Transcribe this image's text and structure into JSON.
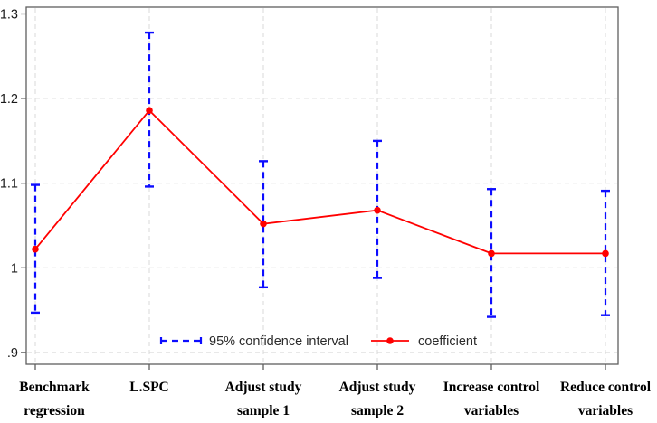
{
  "chart_data": {
    "type": "line",
    "title": "",
    "xlabel": "",
    "ylabel": "",
    "categories": [
      {
        "label": "Benchmark regression",
        "lines": [
          "Benchmark",
          "regression"
        ]
      },
      {
        "label": "L.SPC",
        "lines": [
          "L.SPC"
        ]
      },
      {
        "label": "Adjust study sample 1",
        "lines": [
          "Adjust study",
          "sample 1"
        ]
      },
      {
        "label": "Adjust study sample 2",
        "lines": [
          "Adjust study",
          "sample 2"
        ]
      },
      {
        "label": "Increase control variables",
        "lines": [
          "Increase control",
          "variables"
        ]
      },
      {
        "label": "Reduce control variables",
        "lines": [
          "Reduce control",
          "variables"
        ]
      }
    ],
    "series": [
      {
        "name": "coefficient",
        "type": "line-with-markers",
        "color": "#ff0000",
        "values": [
          1.022,
          1.186,
          1.052,
          1.068,
          1.017,
          1.017
        ]
      },
      {
        "name": "95% confidence interval",
        "type": "errorbar",
        "color": "#0d0dff",
        "low": [
          0.947,
          1.096,
          0.977,
          0.988,
          0.942,
          0.944
        ],
        "high": [
          1.098,
          1.278,
          1.126,
          1.15,
          1.093,
          1.091
        ]
      }
    ],
    "yticks": [
      {
        "label": ".9",
        "value": 0.9
      },
      {
        "label": "1",
        "value": 1.0
      },
      {
        "label": "1.1",
        "value": 1.1
      },
      {
        "label": "1.2",
        "value": 1.2
      },
      {
        "label": "1.3",
        "value": 1.3
      }
    ],
    "ylim": [
      0.886,
      1.308
    ],
    "grid": true,
    "legend": {
      "position": "inside-bottom-center",
      "items": [
        {
          "label": "95% confidence interval",
          "marker": "dashed-ci-line",
          "color": "#0d0dff"
        },
        {
          "label": "coefficient",
          "marker": "line-with-dot",
          "color": "#ff0000"
        }
      ]
    },
    "style": {
      "plot_border_color": "#5f5f5f",
      "grid_color": "#d9d9d9",
      "tick_color": "#5f5f5f",
      "axis_text_color": "#1a1a1a",
      "legend_text_color": "#2b2b2b",
      "background": "#ffffff"
    }
  }
}
